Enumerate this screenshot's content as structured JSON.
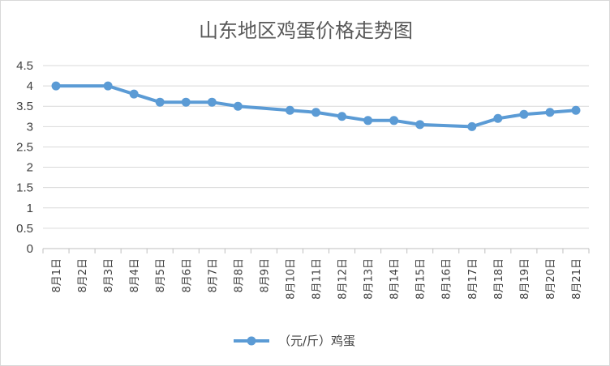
{
  "chart_data": {
    "type": "line",
    "title": "山东地区鸡蛋价格走势图",
    "xlabel": "",
    "ylabel": "",
    "categories": [
      "8月1日",
      "8月2日",
      "8月3日",
      "8月4日",
      "8月5日",
      "8月6日",
      "8月7日",
      "8月8日",
      "8月9日",
      "8月10日",
      "8月11日",
      "8月12日",
      "8月13日",
      "8月14日",
      "8月15日",
      "8月16日",
      "8月17日",
      "8月18日",
      "8月19日",
      "8月20日",
      "8月21日"
    ],
    "y_ticks": [
      "0",
      "0.5",
      "1",
      "1.5",
      "2",
      "2.5",
      "3",
      "3.5",
      "4",
      "4.5"
    ],
    "ylim": [
      0,
      4.5
    ],
    "grid": true,
    "legend_position": "bottom",
    "series": [
      {
        "name": "（元/斤）鸡蛋",
        "color": "#5b9bd5",
        "values": [
          4,
          null,
          4,
          3.8,
          3.6,
          3.6,
          3.6,
          3.5,
          null,
          3.4,
          3.35,
          3.25,
          3.15,
          3.15,
          3.05,
          null,
          3.0,
          3.2,
          3.3,
          3.35,
          3.4
        ]
      }
    ]
  }
}
